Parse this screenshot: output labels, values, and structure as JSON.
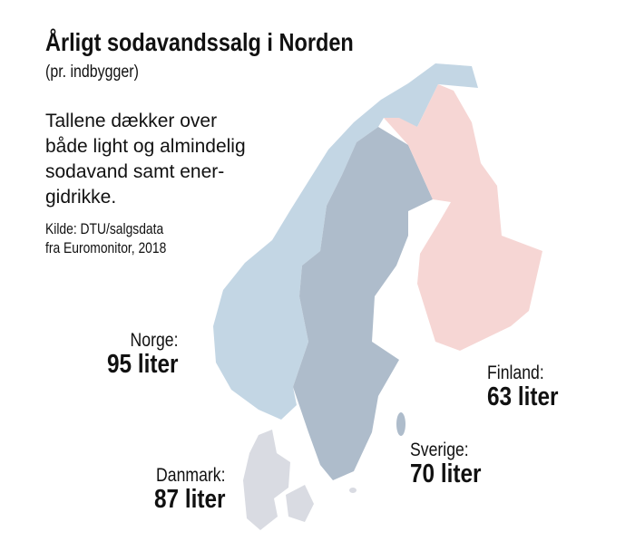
{
  "title": "Årligt sodavandssalg i Norden",
  "subtitle": "(pr. indbygger)",
  "description": [
    "Tallene dækker over",
    "både light og almindelig",
    "sodavand samt ener-",
    "gidrikke."
  ],
  "source": [
    "Kilde: DTU/salgsdata",
    "fra Euromonitor, 2018"
  ],
  "countries": {
    "norge": {
      "name": "Norge:",
      "value": "95 liter",
      "color": "#c3d6e4"
    },
    "sverige": {
      "name": "Sverige:",
      "value": "70 liter",
      "color": "#aebccb"
    },
    "finland": {
      "name": "Finland:",
      "value": "63 liter",
      "color": "#f6d6d4"
    },
    "danmark": {
      "name": "Danmark:",
      "value": "87 liter",
      "color": "#d9dbe2"
    }
  }
}
